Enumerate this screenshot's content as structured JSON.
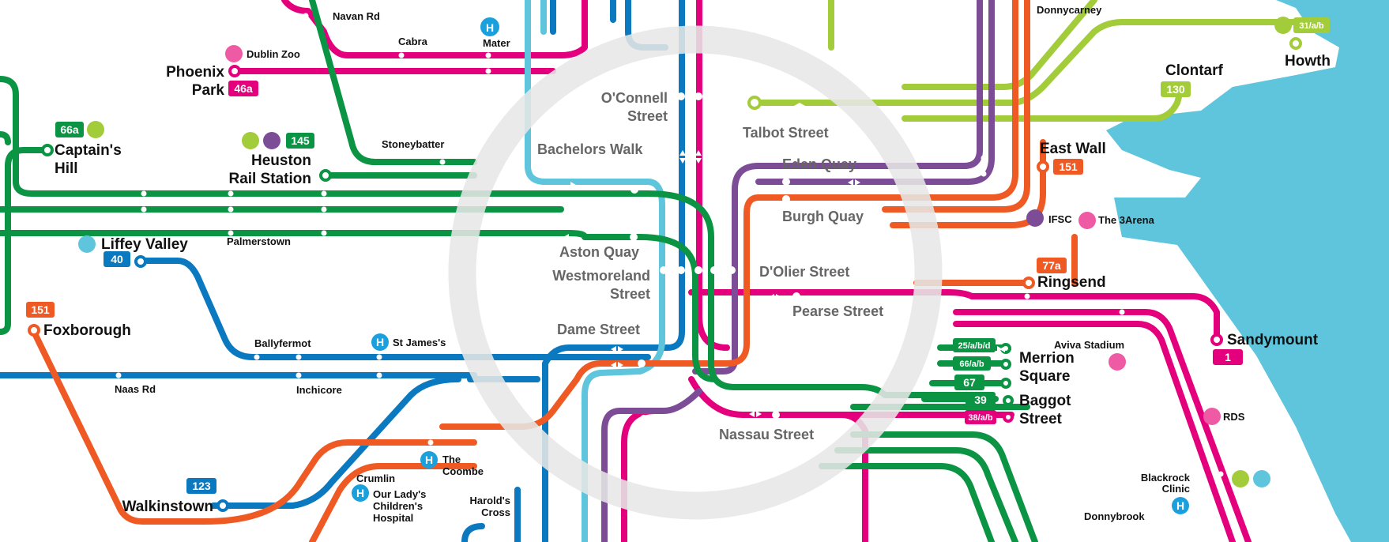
{
  "colors": {
    "green": "#0a9444",
    "magenta": "#e4007c",
    "blue": "#0a79bf",
    "lightblue": "#5ec5dc",
    "purple": "#7d4c97",
    "orange": "#ef5a24",
    "lime": "#a3cc3a",
    "sea": "#5ec5dc",
    "ring": "#e8e8e8"
  },
  "center_ring": {
    "stops": {
      "oconnell": "O'Connell\nStreet",
      "bachelors": "Bachelors Walk",
      "talbot": "Talbot Street",
      "eden": "Eden Quay",
      "burgh": "Burgh Quay",
      "aston": "Aston Quay",
      "westmoreland": "Westmoreland\nStreet",
      "dolier": "D'Olier Street",
      "pearse": "Pearse Street",
      "dame": "Dame Street",
      "nassau": "Nassau Street"
    }
  },
  "places": {
    "navan_rd": "Navan Rd",
    "cabra": "Cabra",
    "mater": "Mater",
    "dublin_zoo": "Dublin Zoo",
    "phoenix_park": "Phoenix\nPark",
    "captains_hill": "Captain's\nHill",
    "stoneybatter": "Stoneybatter",
    "heuston": "Heuston\nRail Station",
    "liffey_valley": "Liffey Valley",
    "palmerstown": "Palmerstown",
    "foxborough": "Foxborough",
    "ballyfermot": "Ballyfermot",
    "st_james": "St James's",
    "naas_rd": "Naas Rd",
    "inchicore": "Inchicore",
    "walkinstown": "Walkinstown",
    "crumlin": "Crumlin",
    "the_coombe": "The\nCoombe",
    "our_ladys": "Our Lady's\nChildren's\nHospital",
    "harolds_cross": "Harold's\nCross",
    "donnycarney": "Donnycarney",
    "howth": "Howth",
    "clontarf": "Clontarf",
    "east_wall": "East Wall",
    "ifsc": "IFSC",
    "the_3arena": "The 3Arena",
    "ringsend": "Ringsend",
    "sandymount": "Sandymount",
    "aviva": "Aviva Stadium",
    "merrion": "Merrion\nSquare",
    "baggot": "Baggot\nStreet",
    "rds": "RDS",
    "blackrock": "Blackrock\nClinic",
    "donnybrook": "Donnybrook",
    "h": "H"
  },
  "badges": {
    "b46a": "46a",
    "b66a": "66a",
    "b145": "145",
    "b40": "40",
    "b151w": "151",
    "b123": "123",
    "b31": "31/a/b",
    "b130": "130",
    "b151e": "151",
    "b77a": "77a",
    "b1": "1",
    "b25": "25/a/b/d",
    "b66ab": "66/a/b",
    "b67": "67",
    "b39": "39",
    "b38": "38/a/b"
  }
}
